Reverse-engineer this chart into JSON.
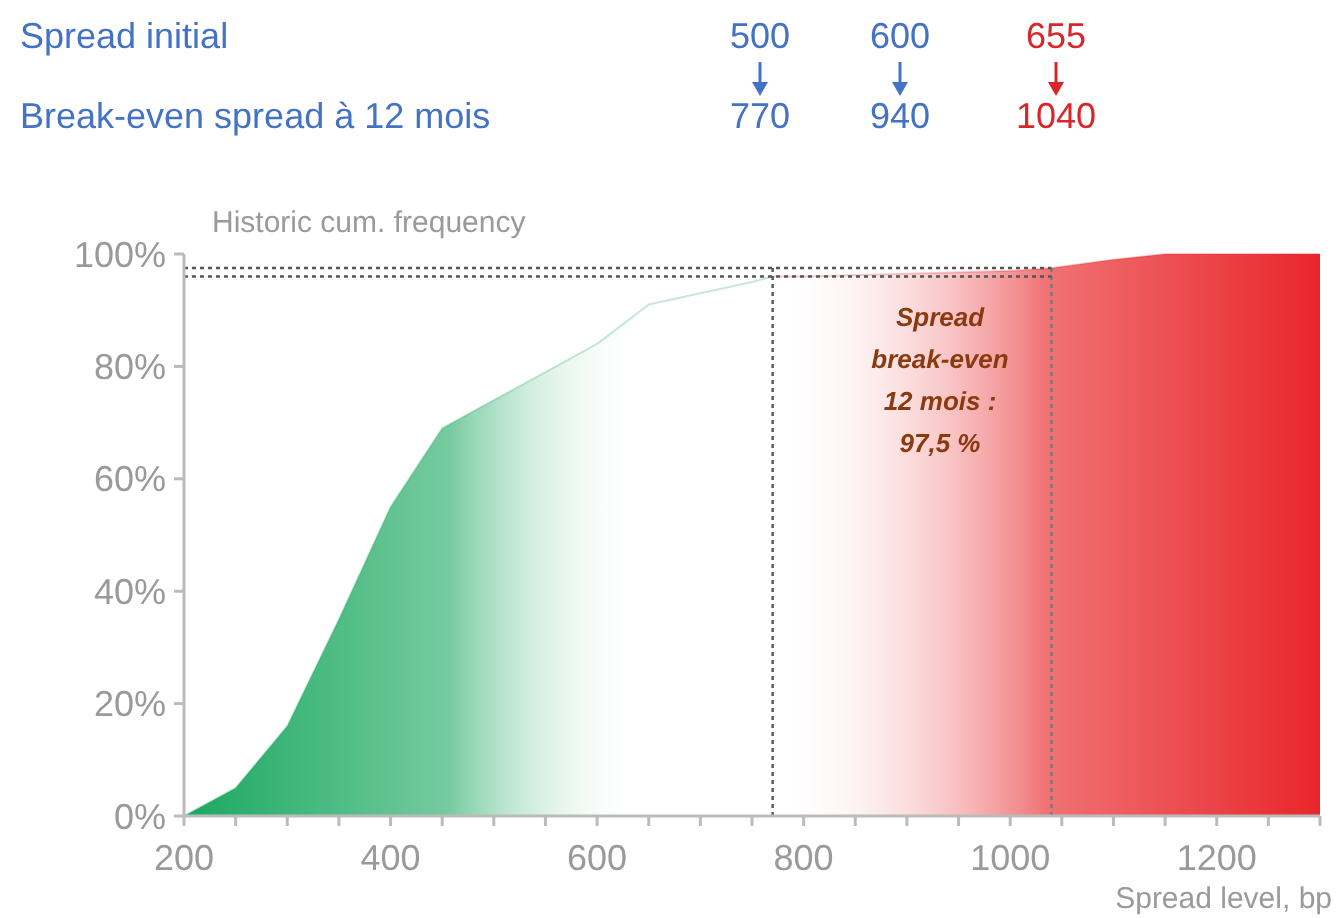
{
  "chart_data": {
    "type": "area",
    "ylabel": "Historic cum. frequency",
    "xlabel": "Spread level, bp",
    "xlim": [
      200,
      1300
    ],
    "ylim": [
      0,
      100
    ],
    "xticks": [
      200,
      {
        "value": 250,
        "label": null
      },
      {
        "value": 300,
        "label": null
      },
      {
        "value": 350,
        "label": null
      },
      400,
      {
        "value": 450,
        "label": null
      },
      {
        "value": 500,
        "label": null
      },
      {
        "value": 550,
        "label": null
      },
      600,
      {
        "value": 650,
        "label": null
      },
      {
        "value": 700,
        "label": null
      },
      {
        "value": 750,
        "label": null
      },
      800,
      {
        "value": 850,
        "label": null
      },
      {
        "value": 900,
        "label": null
      },
      {
        "value": 950,
        "label": null
      },
      1000,
      {
        "value": 1050,
        "label": null
      },
      {
        "value": 1100,
        "label": null
      },
      {
        "value": 1150,
        "label": null
      },
      1200,
      {
        "value": 1250,
        "label": null
      },
      {
        "value": 1300,
        "label": null
      }
    ],
    "yticks": [
      {
        "value": 0,
        "label": "0%"
      },
      {
        "value": 20,
        "label": "20%"
      },
      {
        "value": 40,
        "label": "40%"
      },
      {
        "value": 60,
        "label": "60%"
      },
      {
        "value": 80,
        "label": "80%"
      },
      {
        "value": 100,
        "label": "100%"
      }
    ],
    "grid": false,
    "series": [
      {
        "color": "#1aa860",
        "x": [
          200,
          250,
          300,
          350,
          400,
          450,
          500,
          550,
          600,
          650,
          700,
          750,
          770
        ],
        "values": [
          0,
          5,
          16,
          35,
          55,
          69,
          74,
          79,
          84,
          91,
          93,
          95,
          96
        ]
      },
      {
        "color": "#e8262a",
        "x": [
          770,
          800,
          900,
          1000,
          1040,
          1100,
          1150,
          1300
        ],
        "values": [
          96,
          96,
          96.5,
          97,
          97.5,
          99,
          100,
          100
        ]
      }
    ],
    "ref_lines": [
      {
        "axis": "x",
        "value": 770,
        "line_style": "dotted",
        "color": "#555555"
      },
      {
        "axis": "x",
        "value": 1040,
        "line_style": "dotted",
        "color": "#777777"
      },
      {
        "axis": "y",
        "value": 96,
        "line_style": "dotted",
        "color": "#555555"
      },
      {
        "axis": "y",
        "value": 97.5,
        "line_style": "dotted",
        "color": "#555555"
      }
    ],
    "annotations": [
      "Spread initial",
      "500",
      "600",
      "655",
      "Break-even spread à 12 mois",
      "770",
      "940",
      "1040",
      "Spread break-even 12 mois : 97,5 %"
    ]
  }
}
